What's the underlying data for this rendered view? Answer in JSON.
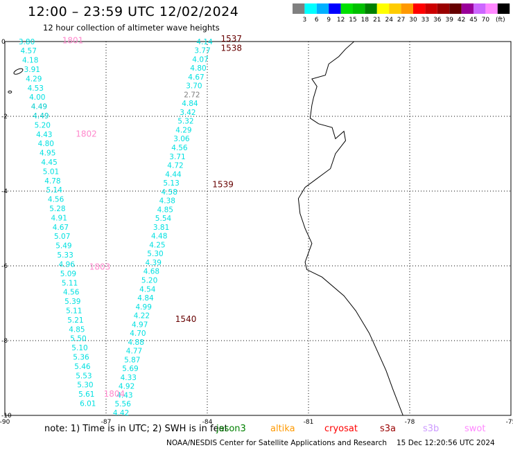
{
  "header": {
    "title": "12:00 – 23:59 UTC 12/02/2024",
    "subtitle": "12 hour collection of altimeter wave heights"
  },
  "colorbar": {
    "unit": "(ft)",
    "colors": [
      "#808080",
      "#00ffff",
      "#00b0ff",
      "#0000ff",
      "#00e000",
      "#00c000",
      "#008000",
      "#ffff00",
      "#ffcc00",
      "#ff9900",
      "#ff0000",
      "#cc0000",
      "#990000",
      "#660000",
      "#990099",
      "#cc66ff",
      "#ff88ff",
      "#000000"
    ],
    "labels": [
      "3",
      "6",
      "9",
      "12",
      "15",
      "18",
      "21",
      "24",
      "27",
      "30",
      "33",
      "36",
      "39",
      "42",
      "45",
      "70"
    ]
  },
  "axes": {
    "lon_ticks": [
      "-90",
      "-87",
      "-84",
      "-81",
      "-78",
      "-75"
    ],
    "lat_ticks": [
      "0",
      "-2",
      "-4",
      "-6",
      "-8",
      "-10"
    ]
  },
  "passes": [
    {
      "label": "1801",
      "color": "#ff88cc",
      "lon": -88.3,
      "lat": -0.05
    },
    {
      "label": "1802",
      "color": "#ff88cc",
      "lon": -87.9,
      "lat": -2.55
    },
    {
      "label": "1803",
      "color": "#ff88cc",
      "lon": -87.5,
      "lat": -6.1
    },
    {
      "label": "1804",
      "color": "#ff88cc",
      "lon": -87.07,
      "lat": -9.5
    },
    {
      "label": "1537",
      "color": "#660000",
      "lon": -83.6,
      "lat": 0.0
    },
    {
      "label": "1538",
      "color": "#660000",
      "lon": -83.6,
      "lat": -0.25
    },
    {
      "label": "1539",
      "color": "#660000",
      "lon": -83.85,
      "lat": -3.9
    },
    {
      "label": "1540",
      "color": "#660000",
      "lon": -84.95,
      "lat": -7.5
    }
  ],
  "track_west": {
    "values": [
      "3.80",
      "4.57",
      "4.18",
      "3.91",
      "4.29",
      "4.53",
      "4.00",
      "4.49",
      "4.49",
      "5.20",
      "4.43",
      "4.80",
      "4.95",
      "4.45",
      "5.01",
      "4.78",
      "5.14",
      "4.56",
      "5.28",
      "4.91",
      "4.67",
      "5.07",
      "5.49",
      "5.33",
      "4.96",
      "5.09",
      "5.11",
      "4.56",
      "5.39",
      "5.11",
      "5.21",
      "4.85",
      "5.50",
      "5.10",
      "5.36",
      "5.46",
      "5.53",
      "5.30",
      "5.61",
      "6.01"
    ],
    "colors": {
      "4.49": "#00cccc"
    }
  },
  "track_east": {
    "values": [
      "4.14",
      "3.77",
      "4.07",
      "4.80",
      "4.67",
      "3.70",
      "2.72",
      "4.84",
      "3.42",
      "5.32",
      "4.29",
      "3.06",
      "4.56",
      "3.71",
      "4.72",
      "4.44",
      "5.13",
      "4.58",
      "4.38",
      "4.85",
      "5.54",
      "3.81",
      "4.48",
      "4.25",
      "5.30",
      "4.39",
      "4.68",
      "5.20",
      "4.54",
      "4.84",
      "4.99",
      "4.22",
      "4.97",
      "4.70",
      "4.88",
      "4.77",
      "5.87",
      "5.69",
      "4.33",
      "4.92",
      "4.43",
      "5.56",
      "4.42"
    ],
    "colors": {
      "2.72": "#808080"
    }
  },
  "legend": {
    "note": "note:  1) Time is in UTC; 2) SWH is in feet",
    "satellites": [
      {
        "name": "jason3",
        "color": "#008000"
      },
      {
        "name": "altika",
        "color": "#ff9900"
      },
      {
        "name": "cryosat",
        "color": "#ff0000"
      },
      {
        "name": "s3a",
        "color": "#990000"
      },
      {
        "name": "s3b",
        "color": "#cc99ff"
      },
      {
        "name": "swot",
        "color": "#ff88ff"
      }
    ]
  },
  "footer": {
    "credit": "NOAA/NESDIS Center for Satellite Applications and Research",
    "timestamp": "15 Dec 12:20:56 UTC 2024"
  }
}
